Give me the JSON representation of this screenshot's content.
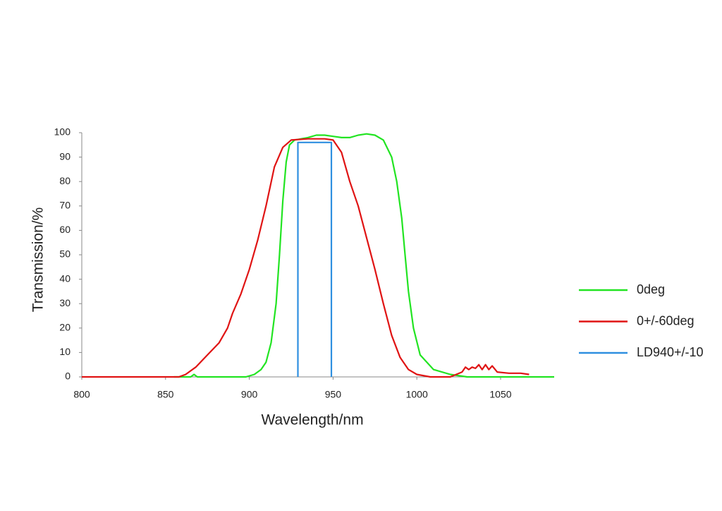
{
  "chart_data": {
    "type": "line",
    "x_label": "Wavelength/nm",
    "y_label": "Transmission/%",
    "xlim": [
      800,
      1082
    ],
    "ylim": [
      0,
      100
    ],
    "xticks": [
      800,
      850,
      900,
      950,
      1000,
      1050
    ],
    "yticks": [
      0,
      10,
      20,
      30,
      40,
      50,
      60,
      70,
      80,
      90,
      100
    ],
    "grid": false,
    "legend": "right",
    "series": [
      {
        "name": "0deg",
        "color": "#22e422",
        "x": [
          855,
          865,
          867,
          869,
          898,
          903,
          907,
          910,
          913,
          916,
          918,
          920,
          922,
          924,
          927,
          935,
          940,
          945,
          950,
          955,
          960,
          965,
          970,
          975,
          980,
          985,
          988,
          991,
          993,
          995,
          998,
          1002,
          1010,
          1020,
          1030,
          1082
        ],
        "values": [
          0,
          0,
          1,
          0,
          0,
          1,
          3,
          6,
          14,
          30,
          50,
          72,
          88,
          95,
          97,
          98,
          99,
          99,
          98.5,
          98,
          98,
          99,
          99.5,
          99,
          97,
          90,
          80,
          65,
          50,
          35,
          20,
          9,
          3,
          1,
          0,
          0
        ]
      },
      {
        "name": "0+/-60deg",
        "color": "#e01414",
        "x": [
          800,
          858,
          862,
          868,
          875,
          882,
          887,
          890,
          895,
          900,
          905,
          910,
          915,
          920,
          925,
          935,
          945,
          950,
          955,
          960,
          965,
          970,
          975,
          980,
          985,
          990,
          995,
          1000,
          1008,
          1020,
          1027,
          1029,
          1031,
          1033,
          1035,
          1037,
          1039,
          1041,
          1043,
          1045,
          1048,
          1055,
          1062,
          1067
        ],
        "values": [
          0,
          0,
          1,
          4,
          9,
          14,
          20,
          26,
          34,
          44,
          56,
          70,
          86,
          94,
          97,
          97.5,
          97.5,
          97,
          92,
          80,
          70,
          57,
          44,
          30,
          17,
          8,
          3,
          1,
          0,
          0,
          2,
          4,
          3,
          4,
          3.5,
          5,
          3,
          5,
          3,
          4.5,
          2,
          1.5,
          1.5,
          1
        ]
      },
      {
        "name": "LD940+/-10",
        "color": "#2e8fe0",
        "x": [
          929,
          929,
          949,
          949
        ],
        "values": [
          0,
          96,
          96,
          0
        ]
      }
    ]
  }
}
